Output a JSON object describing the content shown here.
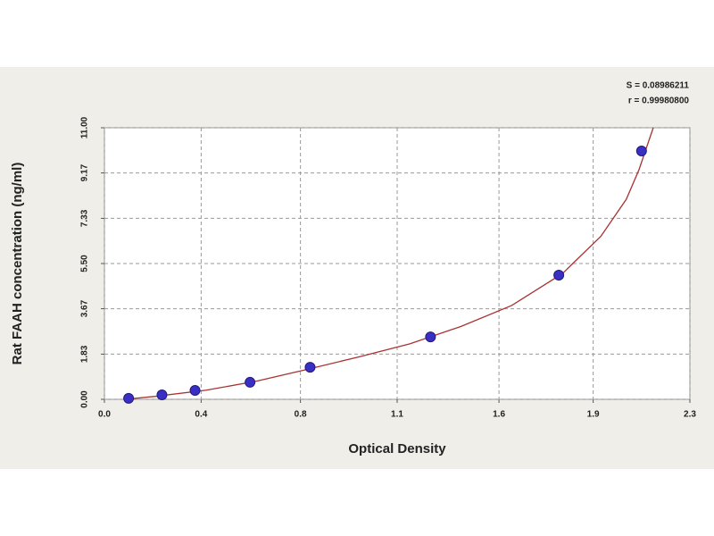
{
  "chart_data": {
    "type": "scatter",
    "xlabel": "Optical Density",
    "ylabel": "Rat FAAH concentration (ng/ml)",
    "annotations": [
      "S = 0.08986211",
      "r = 0.99980800"
    ],
    "xlim": [
      0,
      2.3
    ],
    "ylim": [
      0,
      11
    ],
    "xticks": [
      {
        "value": 0,
        "label": "0.0"
      },
      {
        "value": 0.38,
        "label": "0.4"
      },
      {
        "value": 0.77,
        "label": "0.8"
      },
      {
        "value": 1.15,
        "label": "1.1"
      },
      {
        "value": 1.55,
        "label": "1.6"
      },
      {
        "value": 1.92,
        "label": "1.9"
      },
      {
        "value": 2.3,
        "label": "2.3"
      }
    ],
    "yticks": [
      {
        "value": 0,
        "label": "0.00"
      },
      1.83,
      3.67,
      {
        "value": 5.5,
        "label": "5.50"
      },
      7.33,
      9.17,
      {
        "value": 11,
        "label": "11.00"
      }
    ],
    "grid": true,
    "series": [
      {
        "type": "scatter",
        "color": "#3a2fc4",
        "x": [
          0.095,
          0.226,
          0.356,
          0.572,
          0.808,
          1.281,
          1.785,
          2.11
        ],
        "values": [
          0.04,
          0.18,
          0.36,
          0.69,
          1.3,
          2.53,
          5.03,
          10.06
        ]
      },
      {
        "type": "line",
        "color": "#a83232",
        "x": [
          0.08,
          0.2,
          0.4,
          0.6,
          0.8,
          1.0,
          1.2,
          1.4,
          1.6,
          1.8,
          1.95,
          2.05,
          2.1,
          2.156
        ],
        "values": [
          0,
          0.12,
          0.37,
          0.74,
          1.22,
          1.72,
          2.25,
          2.95,
          3.8,
          5.1,
          6.6,
          8.1,
          9.3,
          11
        ]
      }
    ]
  }
}
